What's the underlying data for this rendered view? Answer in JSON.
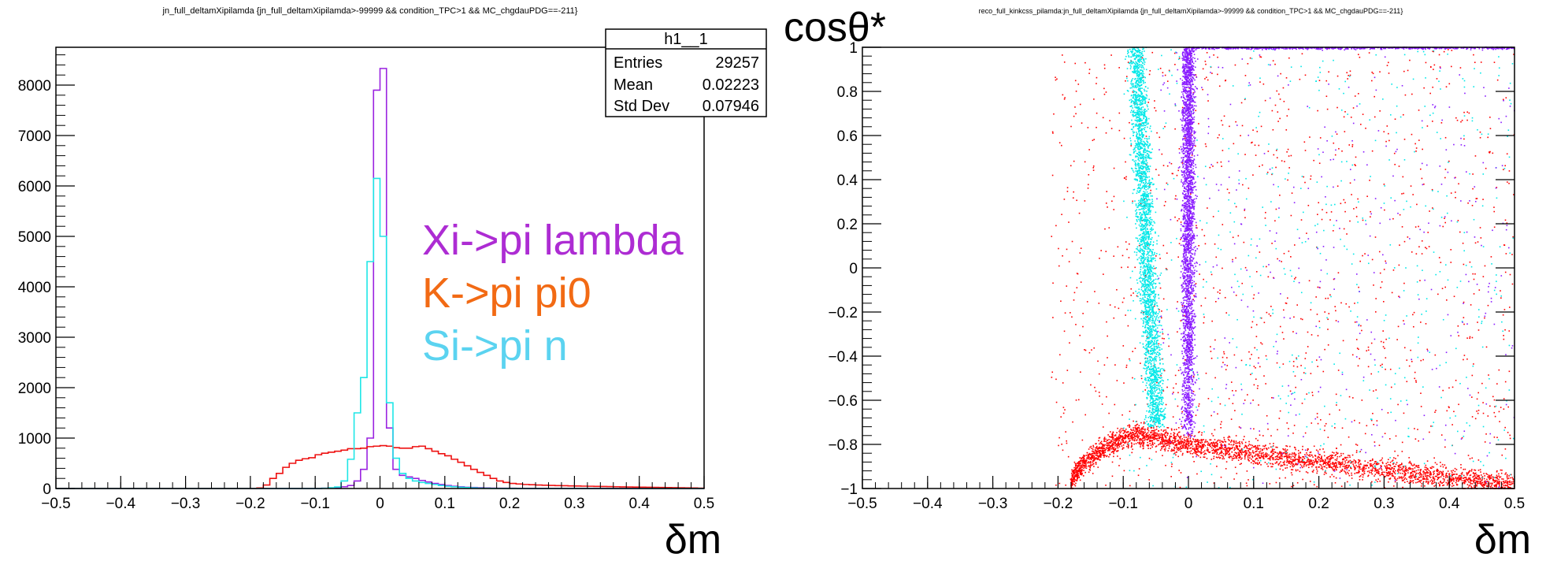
{
  "chart_data": [
    {
      "type": "histogram",
      "title": "jn_full_deltamXipilamda {jn_full_deltamXipilamda>-99999 && condition_TPC>1 && MC_chgdauPDG==-211}",
      "xlabel": "δm",
      "ylabel": "",
      "xlim": [
        -0.5,
        0.5
      ],
      "ylim": [
        0,
        8750
      ],
      "x_ticks": [
        "−0.5",
        "−0.4",
        "−0.3",
        "−0.2",
        "−0.1",
        "0",
        "0.1",
        "0.2",
        "0.3",
        "0.4",
        "0.5"
      ],
      "y_ticks": [
        "0",
        "1000",
        "2000",
        "3000",
        "4000",
        "5000",
        "6000",
        "7000",
        "8000"
      ],
      "grid": false,
      "stats_box": {
        "name": "h1__1",
        "rows": [
          {
            "label": "Entries",
            "value": "29257"
          },
          {
            "label": "Mean",
            "value": "0.02223"
          },
          {
            "label": "Std Dev",
            "value": "0.07946"
          }
        ]
      },
      "bins": {
        "min": -0.5,
        "max": 0.5,
        "count": 100
      },
      "series": [
        {
          "name": "Xi->pi lambda",
          "color": "#9a23e0",
          "values": [
            0,
            0,
            0,
            0,
            0,
            0,
            0,
            0,
            0,
            0,
            0,
            0,
            0,
            0,
            0,
            0,
            0,
            0,
            0,
            0,
            0,
            0,
            0,
            0,
            0,
            0,
            0,
            0,
            0,
            0,
            0,
            0,
            0,
            0,
            0,
            0,
            0,
            0,
            0,
            0,
            0,
            5,
            10,
            20,
            35,
            60,
            150,
            380,
            1000,
            7900,
            8330,
            1200,
            380,
            260,
            230,
            200,
            160,
            130,
            100,
            80,
            60,
            45,
            35,
            25,
            20,
            15,
            10,
            8,
            6,
            5,
            5,
            4,
            4,
            3,
            3,
            3,
            2,
            2,
            2,
            2,
            2,
            1,
            1,
            1,
            1,
            1,
            1,
            1,
            1,
            1,
            0,
            0,
            0,
            0,
            0,
            0,
            0,
            0,
            0,
            0
          ]
        },
        {
          "name": "K->pi pi0",
          "color": "#ee1111",
          "values": [
            0,
            0,
            0,
            0,
            0,
            0,
            0,
            0,
            0,
            0,
            0,
            0,
            0,
            0,
            0,
            0,
            0,
            0,
            0,
            0,
            0,
            0,
            0,
            0,
            0,
            0,
            0,
            0,
            0,
            0,
            0,
            10,
            70,
            200,
            300,
            420,
            500,
            560,
            590,
            610,
            670,
            700,
            720,
            740,
            760,
            790,
            790,
            800,
            830,
            840,
            850,
            840,
            810,
            800,
            800,
            830,
            840,
            790,
            740,
            690,
            650,
            580,
            520,
            450,
            380,
            320,
            260,
            200,
            150,
            120,
            100,
            90,
            80,
            75,
            70,
            65,
            62,
            58,
            55,
            52,
            50,
            47,
            45,
            42,
            40,
            38,
            35,
            32,
            30,
            28,
            26,
            24,
            22,
            20,
            18,
            16,
            14,
            12,
            10,
            8
          ]
        },
        {
          "name": "Si->pi n",
          "color": "#1ee6e6",
          "values": [
            0,
            0,
            0,
            0,
            0,
            0,
            0,
            0,
            0,
            0,
            0,
            0,
            0,
            0,
            0,
            0,
            0,
            0,
            0,
            0,
            0,
            0,
            0,
            0,
            0,
            0,
            0,
            0,
            0,
            0,
            0,
            0,
            0,
            0,
            0,
            0,
            0,
            0,
            0,
            0,
            0,
            5,
            15,
            30,
            150,
            580,
            1500,
            2200,
            4500,
            6150,
            5000,
            1700,
            600,
            300,
            200,
            150,
            120,
            100,
            80,
            60,
            45,
            35,
            25,
            18,
            12,
            8,
            5,
            3,
            2,
            1,
            1,
            0,
            0,
            0,
            0,
            0,
            0,
            0,
            0,
            0,
            0,
            0,
            0,
            0,
            0,
            0,
            0,
            0,
            0,
            0,
            0,
            0,
            0,
            0,
            0,
            0
          ]
        }
      ]
    },
    {
      "type": "scatter",
      "title": "reco_full_kinkcss_pilamda:jn_full_deltamXipilamda {jn_full_deltamXipilamda>-99999 && condition_TPC>1 && MC_chgdauPDG==-211}",
      "xlabel": "δm",
      "ylabel": "cosθ*",
      "xlim": [
        -0.5,
        0.5
      ],
      "ylim": [
        -1,
        1
      ],
      "x_ticks": [
        "−0.5",
        "−0.4",
        "−0.3",
        "−0.2",
        "−0.1",
        "0",
        "0.1",
        "0.2",
        "0.3",
        "0.4",
        "0.5"
      ],
      "y_ticks": [
        "−1",
        "−0.8",
        "−0.6",
        "−0.4",
        "−0.2",
        "0",
        "0.2",
        "0.4",
        "0.6",
        "0.8",
        "1"
      ],
      "grid": false,
      "series": [
        {
          "name": "K->pi pi0",
          "color": "#ff0000",
          "band": "arc from (−0.18,−1) peaking near (−0.08,−0.75) falling to (0.5,−0.98); diffuse scatter for δm > −0.21"
        },
        {
          "name": "Si->pi n",
          "color": "#00e8e8",
          "band": "vertical band from (−0.05,−0.7) to (−0.08,1)"
        },
        {
          "name": "Xi->pi lambda",
          "color": "#8a1bff",
          "band": "vertical band near δm = 0 from −0.75 to 1; concentration along cosθ* = 1"
        }
      ]
    }
  ],
  "legend": [
    {
      "label": "Xi->pi lambda",
      "color": "#ad2cd3"
    },
    {
      "label": "K->pi pi0",
      "color": "#f26a14"
    },
    {
      "label": "Si->pi n",
      "color": "#5bd3f0"
    }
  ]
}
